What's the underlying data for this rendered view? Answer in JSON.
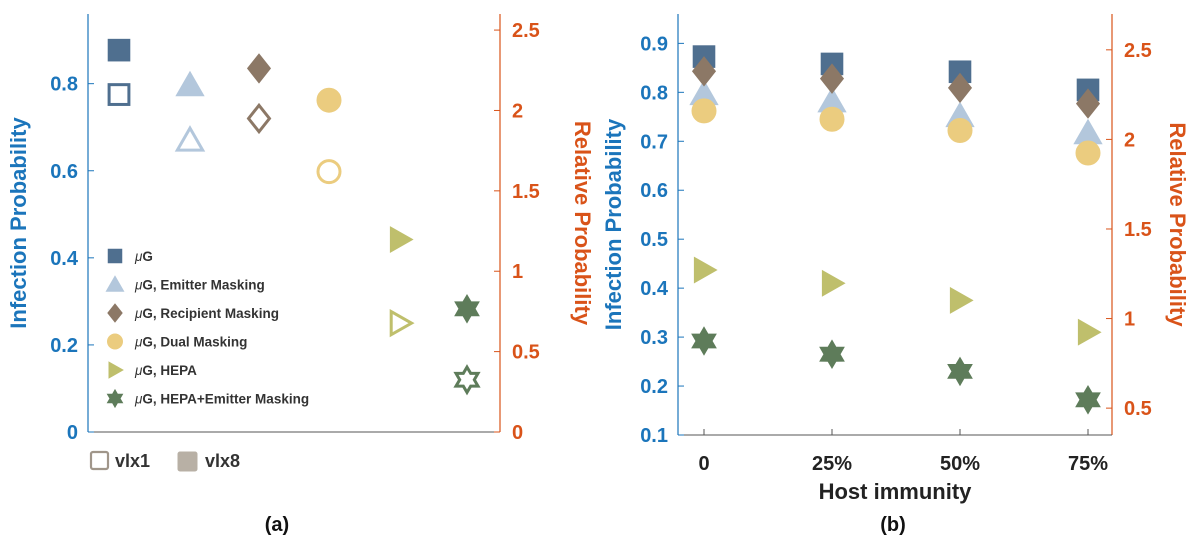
{
  "chart_data": [
    {
      "panel_label": "(a)",
      "type": "scatter",
      "ylabel_left": "Infection Probability",
      "ylabel_right": "Relative Probability",
      "ylim_left": [
        0,
        0.96
      ],
      "ylim_right": [
        0,
        2.6
      ],
      "yticks_left": [
        "0",
        "0.2",
        "0.4",
        "0.6",
        "0.8"
      ],
      "yticks_right": [
        "0",
        "0.5",
        "1",
        "1.5",
        "2",
        "2.5"
      ],
      "legend": {
        "placement": "left-middle",
        "entries": [
          {
            "mu": "μ",
            "text": "G"
          },
          {
            "mu": "μ",
            "text": "G, Emitter Masking"
          },
          {
            "mu": "μ",
            "text": "G, Recipient Masking"
          },
          {
            "mu": "μ",
            "text": "G, Dual Masking"
          },
          {
            "mu": "μ",
            "text": "G, HEPA"
          },
          {
            "mu": "μ",
            "text": "G, HEPA+Emitter Masking"
          }
        ]
      },
      "fill_key": [
        {
          "label": "vlx1",
          "style": "hollow"
        },
        {
          "label": "vlx8",
          "style": "filled"
        }
      ],
      "series": [
        {
          "marker": "square",
          "color": "#4f6f8f",
          "vlx8": 0.877,
          "vlx1": 0.775
        },
        {
          "marker": "triangle",
          "color": "#b3c7dc",
          "vlx8": 0.797,
          "vlx1": 0.67
        },
        {
          "marker": "diamond",
          "color": "#8c7866",
          "vlx8": 0.835,
          "vlx1": 0.72
        },
        {
          "marker": "circle",
          "color": "#ebcc7f",
          "vlx8": 0.762,
          "vlx1": 0.598
        },
        {
          "marker": "triangle-right",
          "color": "#bfbf6c",
          "vlx8": 0.442,
          "vlx1": 0.25
        },
        {
          "marker": "star",
          "color": "#5e7c5a",
          "vlx8": 0.283,
          "vlx1": 0.12
        }
      ]
    },
    {
      "panel_label": "(b)",
      "type": "scatter",
      "xlabel": "Host immunity",
      "categories": [
        "0",
        "25%",
        "50%",
        "75%"
      ],
      "ylabel_left": "Infection Probability",
      "ylabel_right": "Relative Probability",
      "ylim_left": [
        0.1,
        0.96
      ],
      "ylim_right": [
        0.35,
        2.7
      ],
      "yticks_left": [
        "0.1",
        "0.2",
        "0.3",
        "0.4",
        "0.5",
        "0.6",
        "0.7",
        "0.8",
        "0.9"
      ],
      "yticks_right": [
        "0.5",
        "1",
        "1.5",
        "2",
        "2.5"
      ],
      "series": [
        {
          "marker": "square",
          "color": "#4f6f8f",
          "values": [
            0.873,
            0.858,
            0.842,
            0.805
          ]
        },
        {
          "marker": "triangle",
          "color": "#b3c7dc",
          "values": [
            0.797,
            0.782,
            0.752,
            0.717
          ]
        },
        {
          "marker": "diamond",
          "color": "#8c7866",
          "values": [
            0.843,
            0.828,
            0.809,
            0.777
          ]
        },
        {
          "marker": "circle",
          "color": "#ebcc7f",
          "values": [
            0.762,
            0.745,
            0.722,
            0.676
          ]
        },
        {
          "marker": "triangle-right",
          "color": "#bfbf6c",
          "values": [
            0.437,
            0.41,
            0.375,
            0.31
          ]
        },
        {
          "marker": "star",
          "color": "#5e7c5a",
          "values": [
            0.292,
            0.265,
            0.23,
            0.172
          ]
        }
      ]
    }
  ]
}
